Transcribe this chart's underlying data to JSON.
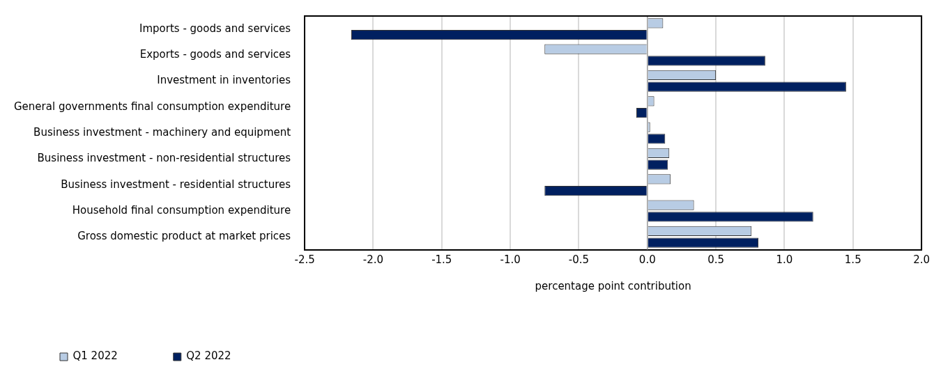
{
  "chart_data": {
    "type": "bar",
    "orientation": "horizontal",
    "xlabel": "percentage point contribution",
    "categories": [
      "Imports - goods and services",
      "Exports - goods and services",
      "Investment in inventories",
      "General governments final consumption expenditure",
      "Business investment - machinery and equipment",
      "Business investment - non-residential structures",
      "Business investment - residential structures",
      "Household final consumption expenditure",
      "Gross domestic product at market prices"
    ],
    "series": [
      {
        "name": "Q1 2022",
        "color": "#b8cce4",
        "values": [
          0.115,
          -0.75,
          0.5,
          0.05,
          0.02,
          0.16,
          0.17,
          0.34,
          0.76
        ]
      },
      {
        "name": "Q2 2022",
        "color": "#002060",
        "values": [
          -2.16,
          0.86,
          1.45,
          -0.08,
          0.13,
          0.15,
          -0.75,
          1.21,
          0.81
        ]
      }
    ],
    "xlim": [
      -2.5,
      2.0
    ],
    "xticks": [
      {
        "value": -2.5,
        "label": "-2.5"
      },
      {
        "value": -2,
        "label": "-2.0"
      },
      {
        "value": -1.5,
        "label": "-1.5"
      },
      {
        "value": -1,
        "label": "-1.0"
      },
      {
        "value": -0.5,
        "label": "-0.5"
      },
      {
        "value": 0,
        "label": "0.0"
      },
      {
        "value": 0.5,
        "label": "0.5"
      },
      {
        "value": 1,
        "label": "1.0"
      },
      {
        "value": 1.5,
        "label": "1.5"
      },
      {
        "value": 2,
        "label": "2.0"
      }
    ],
    "grid": "x",
    "legend": "bottom"
  }
}
